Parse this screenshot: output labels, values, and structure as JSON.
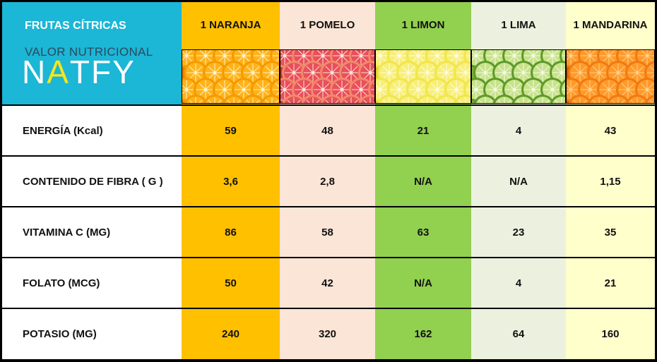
{
  "title": {
    "line1": "FRUTAS CÍTRICAS",
    "line2": "VALOR NUTRICIONAL",
    "brand_letters": [
      "N",
      "A",
      "T",
      "F",
      "Y"
    ],
    "brand_colors": [
      "#ffffff",
      "#f6e61c",
      "#ffffff",
      "#ffffff",
      "#ffffff"
    ]
  },
  "columns": [
    {
      "label": "1 NARANJA",
      "color": "#ffc000",
      "image": "orange-slices"
    },
    {
      "label": "1 POMELO",
      "color": "#fbe5d6",
      "image": "grapefruit-slices"
    },
    {
      "label": "1 LIMON",
      "color": "#92d050",
      "image": "lemon-slices"
    },
    {
      "label": "1 LIMA",
      "color": "#ebf1de",
      "image": "lime-slices"
    },
    {
      "label": "1 MANDARINA",
      "color": "#ffffcc",
      "image": "mandarin-segments"
    }
  ],
  "rows": [
    {
      "label": "ENERGÍA (Kcal)",
      "values": [
        "59",
        "48",
        "21",
        "4",
        "43"
      ]
    },
    {
      "label": "CONTENIDO DE FIBRA ( G )",
      "values": [
        "3,6",
        "2,8",
        "N/A",
        "N/A",
        "1,15"
      ]
    },
    {
      "label": "VITAMINA C (MG)",
      "values": [
        "86",
        "58",
        "63",
        "23",
        "35"
      ]
    },
    {
      "label": "FOLATO (MCG)",
      "values": [
        "50",
        "42",
        "N/A",
        "4",
        "21"
      ]
    },
    {
      "label": "POTASIO (MG)",
      "values": [
        "240",
        "320",
        "162",
        "64",
        "160"
      ]
    }
  ]
}
